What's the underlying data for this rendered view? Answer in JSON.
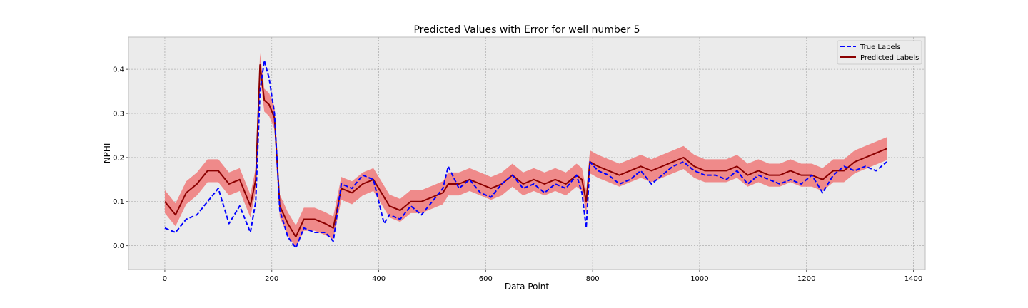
{
  "chart_data": {
    "type": "line",
    "title": "Predicted Values with Error for well number 5",
    "xlabel": "Data Point",
    "ylabel": "NPHI",
    "xlim": [
      -68,
      1422
    ],
    "ylim": [
      -0.054,
      0.473
    ],
    "xticks": [
      0,
      200,
      400,
      600,
      800,
      1000,
      1200,
      1400
    ],
    "yticks": [
      0.0,
      0.1,
      0.2,
      0.3,
      0.4
    ],
    "ytick_labels": [
      "0.0",
      "0.1",
      "0.2",
      "0.3",
      "0.4"
    ],
    "grid": true,
    "background": "#ebebeb",
    "legend": {
      "placement": "top-right",
      "entries": [
        {
          "label": "True Labels",
          "color": "#0000ff",
          "style": "dashed"
        },
        {
          "label": "Predicted Labels",
          "color": "#8b0000",
          "style": "solid"
        }
      ]
    },
    "error_band": {
      "color": "#f08080",
      "half_width": 0.026
    },
    "x": [
      0,
      20,
      40,
      60,
      80,
      100,
      120,
      140,
      160,
      170,
      178,
      186,
      195,
      205,
      215,
      230,
      245,
      260,
      280,
      300,
      315,
      330,
      350,
      370,
      390,
      410,
      420,
      440,
      460,
      480,
      500,
      520,
      530,
      550,
      570,
      590,
      610,
      630,
      650,
      670,
      690,
      710,
      730,
      750,
      770,
      780,
      788,
      795,
      810,
      830,
      850,
      870,
      890,
      910,
      930,
      950,
      970,
      990,
      1010,
      1030,
      1050,
      1070,
      1090,
      1110,
      1130,
      1150,
      1170,
      1190,
      1210,
      1230,
      1250,
      1270,
      1290,
      1310,
      1330,
      1350
    ],
    "series": [
      {
        "name": "True Labels",
        "color": "#0000ff",
        "style": "dashed",
        "values": [
          0.04,
          0.03,
          0.06,
          0.07,
          0.1,
          0.13,
          0.05,
          0.09,
          0.03,
          0.1,
          0.35,
          0.42,
          0.38,
          0.3,
          0.08,
          0.02,
          -0.005,
          0.04,
          0.03,
          0.03,
          0.01,
          0.14,
          0.13,
          0.16,
          0.15,
          0.05,
          0.07,
          0.06,
          0.09,
          0.07,
          0.1,
          0.13,
          0.18,
          0.13,
          0.15,
          0.12,
          0.11,
          0.14,
          0.16,
          0.13,
          0.14,
          0.12,
          0.14,
          0.13,
          0.16,
          0.12,
          0.04,
          0.19,
          0.17,
          0.16,
          0.14,
          0.15,
          0.17,
          0.14,
          0.16,
          0.18,
          0.19,
          0.17,
          0.16,
          0.16,
          0.15,
          0.17,
          0.14,
          0.16,
          0.15,
          0.14,
          0.15,
          0.14,
          0.16,
          0.12,
          0.16,
          0.18,
          0.17,
          0.18,
          0.17,
          0.19
        ]
      },
      {
        "name": "Predicted Labels",
        "color": "#8b0000",
        "style": "solid",
        "values": [
          0.1,
          0.07,
          0.12,
          0.14,
          0.17,
          0.17,
          0.14,
          0.15,
          0.09,
          0.15,
          0.41,
          0.33,
          0.32,
          0.29,
          0.09,
          0.05,
          0.02,
          0.06,
          0.06,
          0.05,
          0.04,
          0.13,
          0.12,
          0.14,
          0.15,
          0.11,
          0.09,
          0.08,
          0.1,
          0.1,
          0.11,
          0.12,
          0.14,
          0.14,
          0.15,
          0.14,
          0.13,
          0.14,
          0.16,
          0.14,
          0.15,
          0.14,
          0.15,
          0.14,
          0.16,
          0.15,
          0.1,
          0.19,
          0.18,
          0.17,
          0.16,
          0.17,
          0.18,
          0.17,
          0.18,
          0.19,
          0.2,
          0.18,
          0.17,
          0.17,
          0.17,
          0.18,
          0.16,
          0.17,
          0.16,
          0.16,
          0.17,
          0.16,
          0.16,
          0.15,
          0.17,
          0.17,
          0.19,
          0.2,
          0.21,
          0.22
        ]
      }
    ]
  }
}
